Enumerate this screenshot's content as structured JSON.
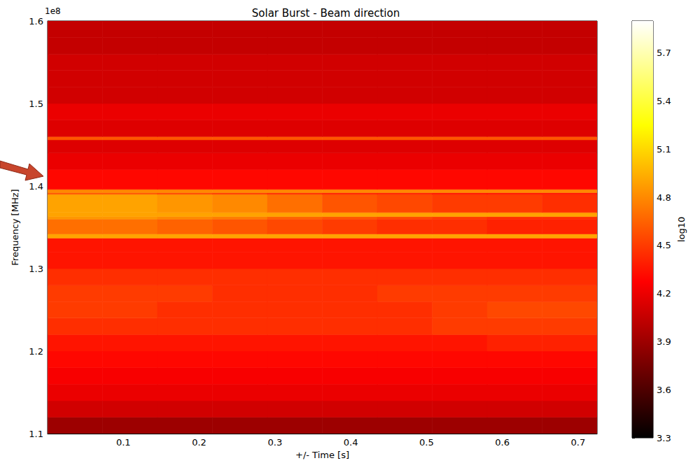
{
  "chart_data": {
    "type": "heatmap",
    "title": "Solar Burst - Beam direction",
    "x_label": "+/- Time [s]",
    "y_label": "Frequency [MHz]",
    "annotations": [
      "1e8"
    ],
    "xlim": [
      0,
      0.725
    ],
    "xticks": [
      0.1,
      0.2,
      0.3,
      0.4,
      0.5,
      0.6,
      0.7
    ],
    "ylim": [
      1.1,
      1.6
    ],
    "yticks": [
      1.1,
      1.2,
      1.3,
      1.4,
      1.5,
      1.6
    ],
    "x_bins": [
      0,
      0.0725,
      0.145,
      0.2175,
      0.29,
      0.3625,
      0.435,
      0.5075,
      0.58,
      0.6525,
      0.725
    ],
    "y_bins": [
      1.1,
      1.12,
      1.14,
      1.16,
      1.18,
      1.2,
      1.22,
      1.24,
      1.26,
      1.28,
      1.3,
      1.32,
      1.337,
      1.342,
      1.36,
      1.363,
      1.368,
      1.39,
      1.392,
      1.396,
      1.42,
      1.44,
      1.456,
      1.46,
      1.48,
      1.5,
      1.52,
      1.54,
      1.56,
      1.58,
      1.6
    ],
    "cells": [
      [
        3.9,
        3.9,
        3.9,
        3.9,
        3.9,
        3.9,
        3.9,
        3.9,
        3.9,
        3.9
      ],
      [
        4.1,
        4.1,
        4.1,
        4.1,
        4.1,
        4.1,
        4.1,
        4.1,
        4.1,
        4.1
      ],
      [
        4.2,
        4.2,
        4.2,
        4.2,
        4.2,
        4.2,
        4.2,
        4.2,
        4.2,
        4.2
      ],
      [
        4.25,
        4.25,
        4.25,
        4.25,
        4.25,
        4.25,
        4.25,
        4.25,
        4.25,
        4.25
      ],
      [
        4.3,
        4.3,
        4.3,
        4.3,
        4.3,
        4.3,
        4.3,
        4.3,
        4.3,
        4.3
      ],
      [
        4.35,
        4.35,
        4.35,
        4.35,
        4.35,
        4.35,
        4.35,
        4.35,
        4.4,
        4.4
      ],
      [
        4.45,
        4.45,
        4.45,
        4.45,
        4.45,
        4.45,
        4.45,
        4.5,
        4.5,
        4.5
      ],
      [
        4.5,
        4.5,
        4.45,
        4.45,
        4.45,
        4.45,
        4.45,
        4.5,
        4.55,
        4.55
      ],
      [
        4.5,
        4.5,
        4.5,
        4.45,
        4.45,
        4.45,
        4.5,
        4.5,
        4.5,
        4.5
      ],
      [
        4.45,
        4.45,
        4.45,
        4.45,
        4.45,
        4.45,
        4.45,
        4.45,
        4.45,
        4.45
      ],
      [
        4.35,
        4.35,
        4.35,
        4.35,
        4.35,
        4.35,
        4.35,
        4.35,
        4.35,
        4.35
      ],
      [
        4.35,
        4.35,
        4.35,
        4.35,
        4.35,
        4.35,
        4.35,
        4.35,
        4.35,
        4.35
      ],
      [
        4.9,
        4.9,
        4.9,
        4.9,
        4.9,
        4.9,
        4.9,
        4.9,
        4.9,
        4.9
      ],
      [
        4.7,
        4.7,
        4.65,
        4.6,
        4.55,
        4.5,
        4.45,
        4.45,
        4.4,
        4.4
      ],
      [
        4.85,
        4.85,
        4.8,
        4.75,
        4.65,
        4.6,
        4.55,
        4.5,
        4.45,
        4.45
      ],
      [
        4.9,
        4.9,
        4.9,
        4.9,
        4.9,
        4.9,
        4.9,
        4.9,
        4.9,
        4.9
      ],
      [
        4.9,
        4.9,
        4.85,
        4.8,
        4.7,
        4.6,
        4.55,
        4.5,
        4.5,
        4.45
      ],
      [
        4.6,
        4.6,
        4.55,
        4.5,
        4.45,
        4.4,
        4.4,
        4.35,
        4.35,
        4.35
      ],
      [
        4.8,
        4.8,
        4.8,
        4.8,
        4.8,
        4.8,
        4.8,
        4.8,
        4.8,
        4.8
      ],
      [
        4.3,
        4.3,
        4.3,
        4.3,
        4.3,
        4.3,
        4.3,
        4.3,
        4.3,
        4.3
      ],
      [
        4.2,
        4.2,
        4.2,
        4.2,
        4.2,
        4.2,
        4.2,
        4.2,
        4.2,
        4.2
      ],
      [
        4.15,
        4.15,
        4.15,
        4.15,
        4.15,
        4.15,
        4.15,
        4.15,
        4.15,
        4.15
      ],
      [
        4.6,
        4.6,
        4.6,
        4.6,
        4.6,
        4.6,
        4.6,
        4.6,
        4.6,
        4.6
      ],
      [
        4.15,
        4.15,
        4.15,
        4.15,
        4.15,
        4.15,
        4.15,
        4.15,
        4.15,
        4.15
      ],
      [
        4.2,
        4.2,
        4.2,
        4.2,
        4.2,
        4.2,
        4.2,
        4.2,
        4.2,
        4.2
      ],
      [
        4.1,
        4.1,
        4.1,
        4.1,
        4.1,
        4.1,
        4.1,
        4.1,
        4.1,
        4.1
      ],
      [
        4.1,
        4.1,
        4.1,
        4.1,
        4.1,
        4.1,
        4.1,
        4.1,
        4.1,
        4.1
      ],
      [
        4.1,
        4.1,
        4.1,
        4.1,
        4.1,
        4.1,
        4.1,
        4.1,
        4.1,
        4.1
      ],
      [
        4.05,
        4.05,
        4.05,
        4.05,
        4.05,
        4.05,
        4.05,
        4.05,
        4.05,
        4.05
      ],
      [
        4.05,
        4.05,
        4.05,
        4.05,
        4.05,
        4.05,
        4.05,
        4.05,
        4.05,
        4.05
      ]
    ],
    "colorbar": {
      "label": "log10",
      "range": [
        3.3,
        5.9
      ],
      "ticks": [
        3.3,
        3.6,
        3.9,
        4.2,
        4.5,
        4.8,
        5.1,
        5.4,
        5.7
      ]
    },
    "grid": false
  }
}
